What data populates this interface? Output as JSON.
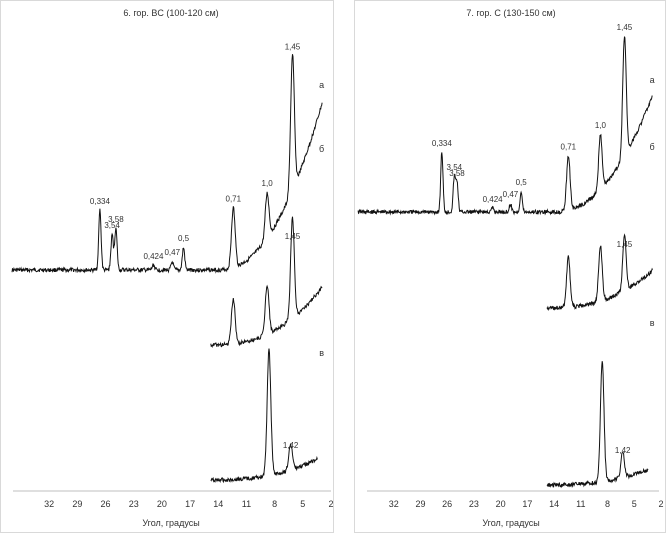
{
  "chart_data": [
    {
      "type": "line",
      "title": "6. гор. BC (100-120 см)",
      "xlabel": "Угол, градусы",
      "ylabel": "",
      "xlim": [
        35,
        2
      ],
      "x_ticks": [
        32,
        29,
        26,
        23,
        20,
        17,
        14,
        11,
        8,
        5,
        2
      ],
      "grid": false,
      "series": [
        {
          "name": "а",
          "peaks": [
            {
              "label": "0,334",
              "x": 26.6,
              "height": 0.6
            },
            {
              "label": "3,54",
              "x": 25.3,
              "height": 0.35
            },
            {
              "label": "3,58",
              "x": 24.9,
              "height": 0.42
            },
            {
              "label": "0,47",
              "x": 18.9,
              "height": 0.08
            },
            {
              "label": "0,424",
              "x": 20.9,
              "height": 0.05
            },
            {
              "label": "0,5",
              "x": 17.7,
              "height": 0.22
            },
            {
              "label": "0,71",
              "x": 12.4,
              "height": 0.6
            },
            {
              "label": "1,0",
              "x": 8.8,
              "height": 0.45
            },
            {
              "label": "1,45",
              "x": 6.1,
              "height": 1.35
            }
          ]
        },
        {
          "name": "б",
          "peaks": [
            {
              "label": "",
              "x": 12.4,
              "height": 0.45
            },
            {
              "label": "",
              "x": 8.8,
              "height": 0.5
            },
            {
              "label": "1,45",
              "x": 6.1,
              "height": 1.0
            }
          ]
        },
        {
          "name": "в",
          "peaks": [
            {
              "label": "",
              "x": 8.6,
              "height": 1.25
            },
            {
              "label": "1,42",
              "x": 6.3,
              "height": 0.25
            }
          ]
        }
      ]
    },
    {
      "type": "line",
      "title": "7. гор. C (130-150 см)",
      "xlabel": "Угол, градусы",
      "ylabel": "",
      "xlim": [
        35,
        2
      ],
      "x_ticks": [
        32,
        29,
        26,
        23,
        20,
        17,
        14,
        11,
        8,
        5,
        2
      ],
      "grid": false,
      "series": [
        {
          "name": "а",
          "peaks": [
            {
              "label": "0,334",
              "x": 26.6,
              "height": 0.6
            },
            {
              "label": "3,54",
              "x": 25.2,
              "height": 0.35
            },
            {
              "label": "3,58",
              "x": 24.9,
              "height": 0.3
            },
            {
              "label": "0,47",
              "x": 18.9,
              "height": 0.08
            },
            {
              "label": "0,424",
              "x": 20.9,
              "height": 0.04
            },
            {
              "label": "0,5",
              "x": 17.7,
              "height": 0.2
            },
            {
              "label": "0,71",
              "x": 12.4,
              "height": 0.55
            },
            {
              "label": "1,0",
              "x": 8.8,
              "height": 0.55
            },
            {
              "label": "1,45",
              "x": 6.1,
              "height": 1.2
            }
          ]
        },
        {
          "name": "б",
          "peaks": [
            {
              "label": "",
              "x": 12.4,
              "height": 0.5
            },
            {
              "label": "",
              "x": 8.8,
              "height": 0.55
            },
            {
              "label": "1,45",
              "x": 6.1,
              "height": 0.55
            }
          ]
        },
        {
          "name": "в",
          "peaks": [
            {
              "label": "",
              "x": 8.6,
              "height": 1.2
            },
            {
              "label": "1,42",
              "x": 6.3,
              "height": 0.25
            }
          ]
        }
      ]
    }
  ]
}
